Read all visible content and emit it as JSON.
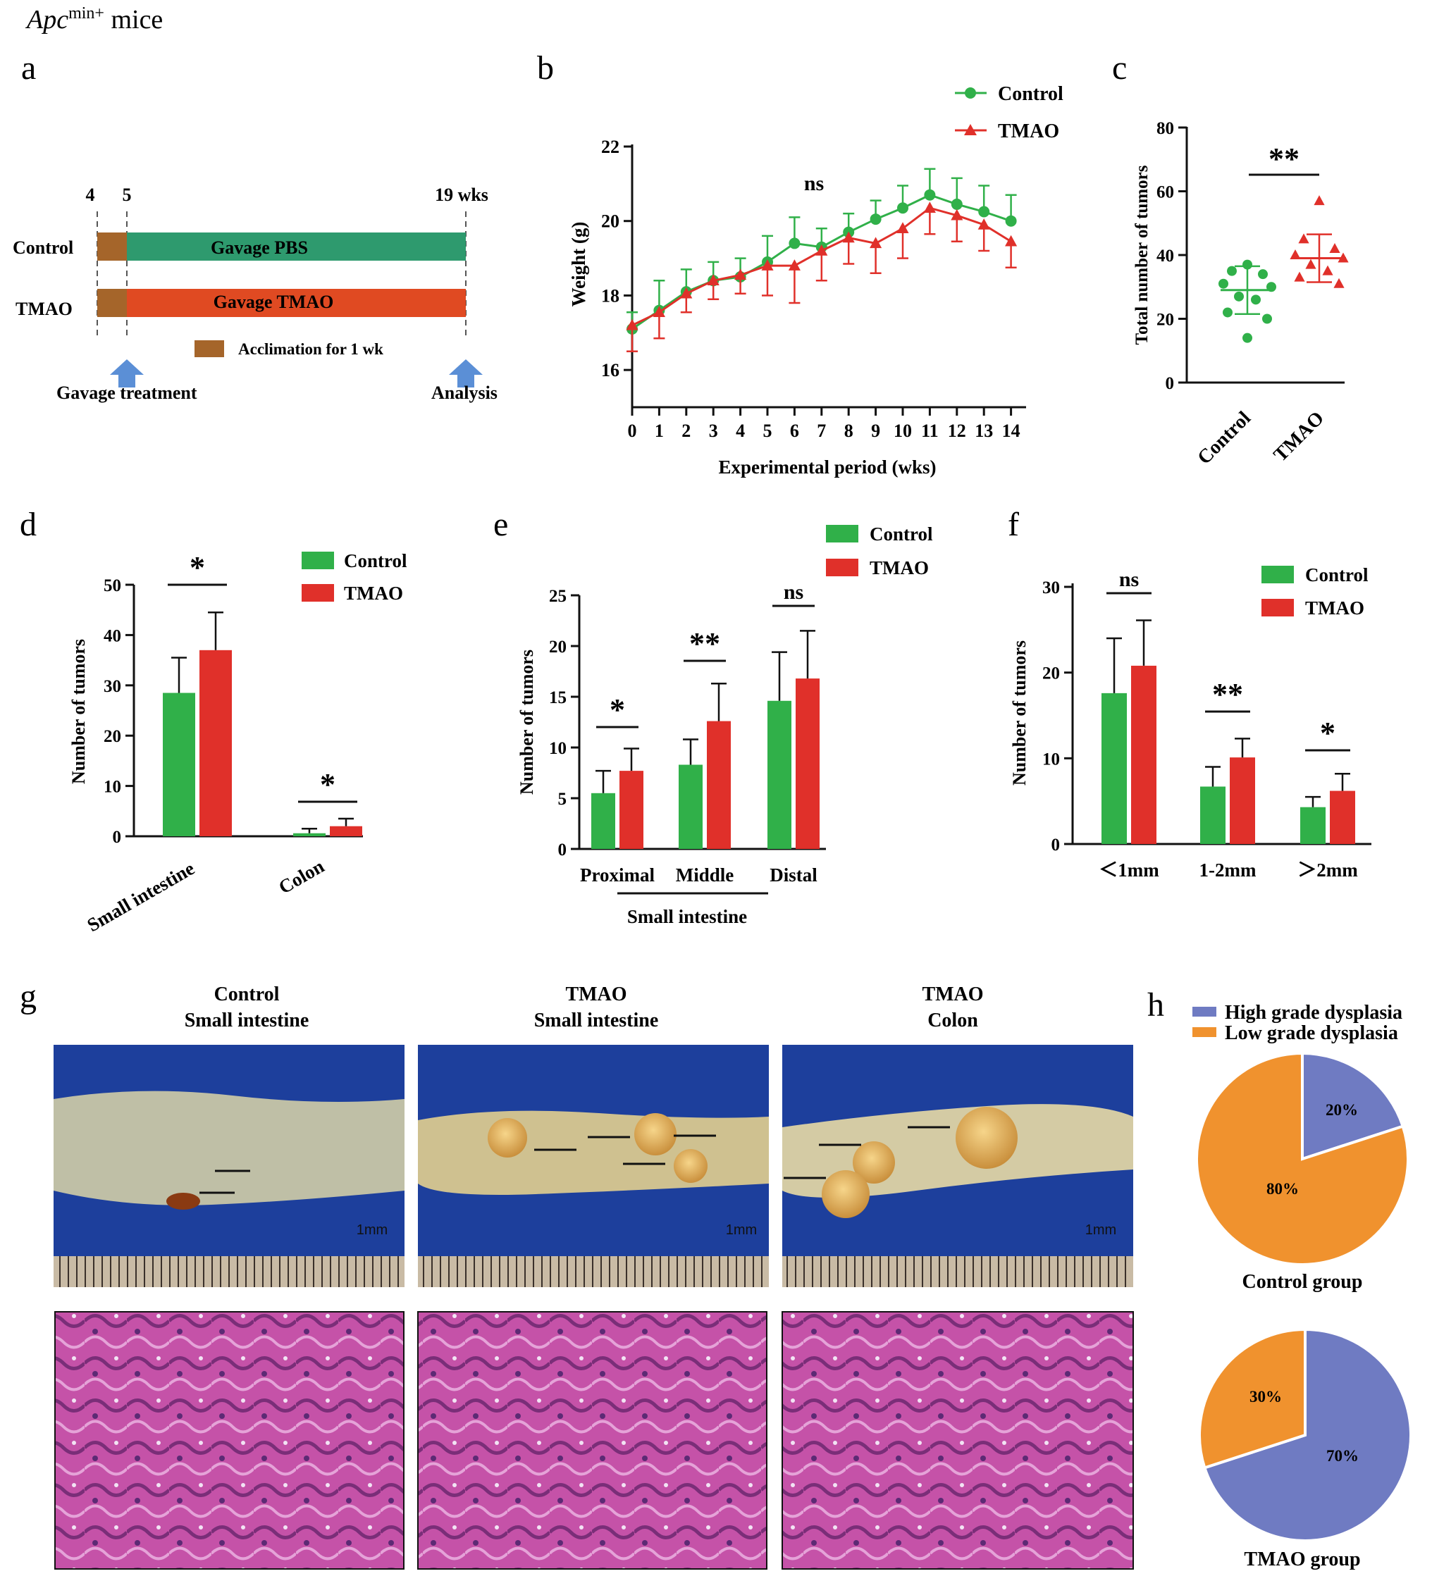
{
  "figure": {
    "header": {
      "italic": "Apc",
      "sup": "min+",
      "rest": " mice"
    },
    "panel_letters": [
      "a",
      "b",
      "c",
      "d",
      "e",
      "f",
      "g",
      "h"
    ]
  },
  "panel_a": {
    "ticks": [
      "4",
      "5",
      "19 wks"
    ],
    "rows": [
      {
        "label": "Control",
        "bar_label": "Gavage PBS",
        "color": "#2e9a6e"
      },
      {
        "label": "TMAO",
        "bar_label": "Gavage TMAO",
        "color": "#e04a22"
      }
    ],
    "acclimation_color": "#a5652a",
    "legend": "Acclimation for 1 wk",
    "arrows": [
      "Gavage treatment",
      "Analysis"
    ],
    "arrow_color": "#5b8fd6"
  },
  "colors": {
    "control": "#30b049",
    "tmao": "#e0302a",
    "high": "#6f7bc2",
    "low": "#f0922e"
  },
  "chart_data": [
    {
      "id": "b",
      "type": "line",
      "xlabel": "Experimental period (wks)",
      "ylabel": "Weight (g)",
      "x": [
        0,
        1,
        2,
        3,
        4,
        5,
        6,
        7,
        8,
        9,
        10,
        11,
        12,
        13,
        14
      ],
      "xticks": [
        "0",
        "1",
        "2",
        "3",
        "4",
        "5",
        "6",
        "7",
        "8",
        "9",
        "10",
        "11",
        "12",
        "13",
        "14"
      ],
      "yticks": [
        "16",
        "18",
        "20",
        "22"
      ],
      "ylim": [
        15,
        22
      ],
      "annotation": "ns",
      "series": [
        {
          "name": "Control",
          "marker": "circle",
          "values": [
            17.1,
            17.6,
            18.1,
            18.4,
            18.5,
            18.9,
            19.4,
            19.3,
            19.7,
            20.05,
            20.35,
            20.7,
            20.45,
            20.25,
            20.0
          ],
          "err": [
            0.45,
            0.8,
            0.6,
            0.5,
            0.5,
            0.7,
            0.7,
            0.5,
            0.5,
            0.5,
            0.6,
            0.7,
            0.7,
            0.7,
            0.7
          ]
        },
        {
          "name": "TMAO",
          "marker": "triangle",
          "values": [
            17.2,
            17.55,
            18.05,
            18.4,
            18.55,
            18.8,
            18.8,
            19.2,
            19.55,
            19.4,
            19.8,
            20.35,
            20.15,
            19.9,
            19.45
          ],
          "err": [
            0.7,
            0.7,
            0.5,
            0.5,
            0.5,
            0.8,
            1.0,
            0.8,
            0.7,
            0.8,
            0.8,
            0.7,
            0.7,
            0.7,
            0.7
          ]
        }
      ]
    },
    {
      "id": "c",
      "type": "scatter",
      "ylabel": "Total number of tumors",
      "categories": [
        "Control",
        "TMAO"
      ],
      "yticks": [
        "0",
        "20",
        "40",
        "60",
        "80"
      ],
      "ylim": [
        0,
        80
      ],
      "annotation": "**",
      "series": [
        {
          "name": "Control",
          "marker": "circle",
          "values": [
            37,
            35,
            34,
            31,
            30,
            27,
            26,
            22,
            20,
            14
          ],
          "mean": 29,
          "sd": 7.5
        },
        {
          "name": "TMAO",
          "marker": "triangle",
          "values": [
            57,
            45,
            42,
            40,
            39,
            37,
            35,
            33,
            31
          ],
          "mean": 39,
          "sd": 7.5
        }
      ]
    },
    {
      "id": "d",
      "type": "bar",
      "ylabel": "Number of tumors",
      "categories": [
        "Small intestine",
        "Colon"
      ],
      "yticks": [
        "0",
        "10",
        "20",
        "30",
        "40",
        "50"
      ],
      "ylim": [
        0,
        50
      ],
      "annotations": [
        "*",
        "*"
      ],
      "series": [
        {
          "name": "Control",
          "values": [
            28.5,
            0.6
          ],
          "err": [
            7,
            0.9
          ]
        },
        {
          "name": "TMAO",
          "values": [
            37,
            2
          ],
          "err": [
            7.5,
            1.5
          ]
        }
      ]
    },
    {
      "id": "e",
      "type": "bar",
      "ylabel": "Number of tumors",
      "xlabel": "Small intestine",
      "categories": [
        "Proximal",
        "Middle",
        "Distal"
      ],
      "yticks": [
        "0",
        "5",
        "10",
        "15",
        "20",
        "25"
      ],
      "ylim": [
        0,
        25
      ],
      "annotations": [
        "*",
        "**",
        "ns"
      ],
      "series": [
        {
          "name": "Control",
          "values": [
            5.5,
            8.3,
            14.6
          ],
          "err": [
            2.2,
            2.5,
            4.8
          ]
        },
        {
          "name": "TMAO",
          "values": [
            7.7,
            12.6,
            16.8
          ],
          "err": [
            2.2,
            3.7,
            4.7
          ]
        }
      ]
    },
    {
      "id": "f",
      "type": "bar",
      "ylabel": "Number of tumors",
      "categories": [
        "＜1mm",
        "1-2mm",
        "＞2mm"
      ],
      "yticks": [
        "0",
        "10",
        "20",
        "30"
      ],
      "ylim": [
        0,
        30
      ],
      "annotations": [
        "ns",
        "**",
        "*"
      ],
      "series": [
        {
          "name": "Control",
          "values": [
            17.6,
            6.7,
            4.3
          ],
          "err": [
            6.4,
            2.3,
            1.2
          ]
        },
        {
          "name": "TMAO",
          "values": [
            20.8,
            10.1,
            6.2
          ],
          "err": [
            5.3,
            2.2,
            2.0
          ]
        }
      ]
    },
    {
      "id": "h1",
      "type": "pie",
      "title": "Control group",
      "categories": [
        "High grade dysplasia",
        "Low grade dysplasia"
      ],
      "values": [
        20,
        80
      ],
      "labels": [
        "20%",
        "80%"
      ]
    },
    {
      "id": "h2",
      "type": "pie",
      "title": "TMAO group",
      "categories": [
        "High grade dysplasia",
        "Low grade dysplasia"
      ],
      "values": [
        70,
        30
      ],
      "labels": [
        "70%",
        "30%"
      ]
    }
  ],
  "panel_g": {
    "titles": [
      {
        "line1": "Control",
        "line2": "Small intestine"
      },
      {
        "line1": "TMAO",
        "line2": "Small intestine"
      },
      {
        "line1": "TMAO",
        "line2": "Colon"
      }
    ],
    "scale_label": "1mm"
  }
}
